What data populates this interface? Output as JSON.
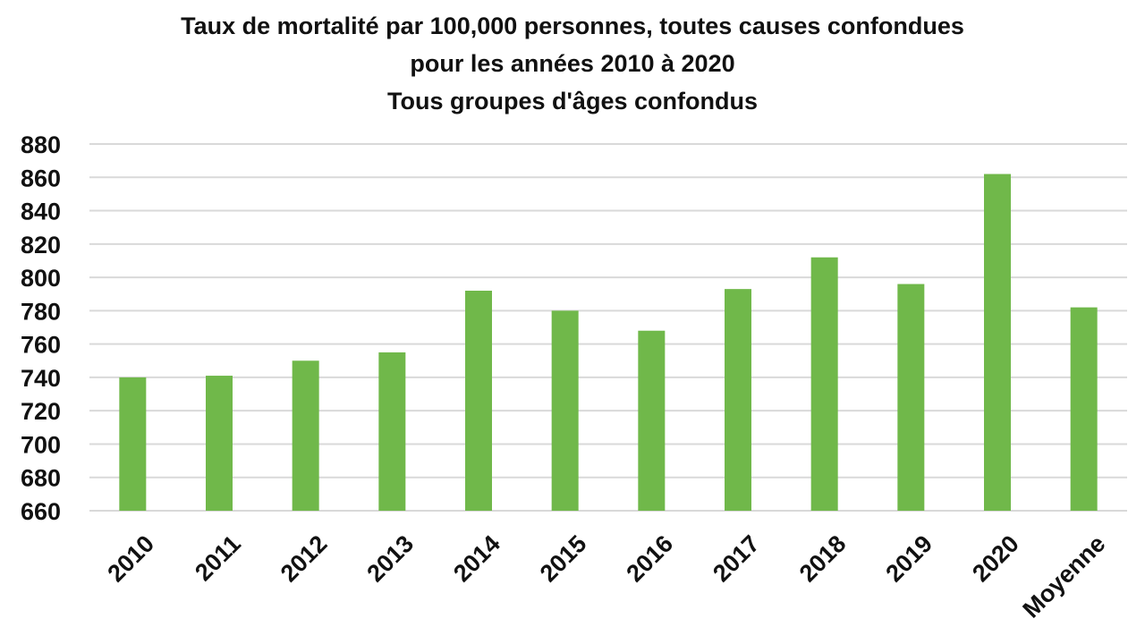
{
  "chart_data": {
    "type": "bar",
    "title_lines": [
      "Taux de mortalité par 100,000 personnes, toutes causes confondues",
      "pour les années 2010 à 2020",
      "Tous groupes d'âges confondus"
    ],
    "xlabel": "",
    "ylabel": "",
    "categories": [
      "2010",
      "2011",
      "2012",
      "2013",
      "2014",
      "2015",
      "2016",
      "2017",
      "2018",
      "2019",
      "2020",
      "Moyenne"
    ],
    "values": [
      740,
      741,
      750,
      755,
      792,
      780,
      768,
      793,
      812,
      796,
      862,
      782
    ],
    "ylim": [
      660,
      880
    ],
    "yticks": [
      "660",
      "680",
      "700",
      "720",
      "740",
      "760",
      "780",
      "800",
      "820",
      "840",
      "860",
      "880"
    ],
    "grid": true,
    "legend": "none",
    "bar_color": "#70b84a"
  }
}
